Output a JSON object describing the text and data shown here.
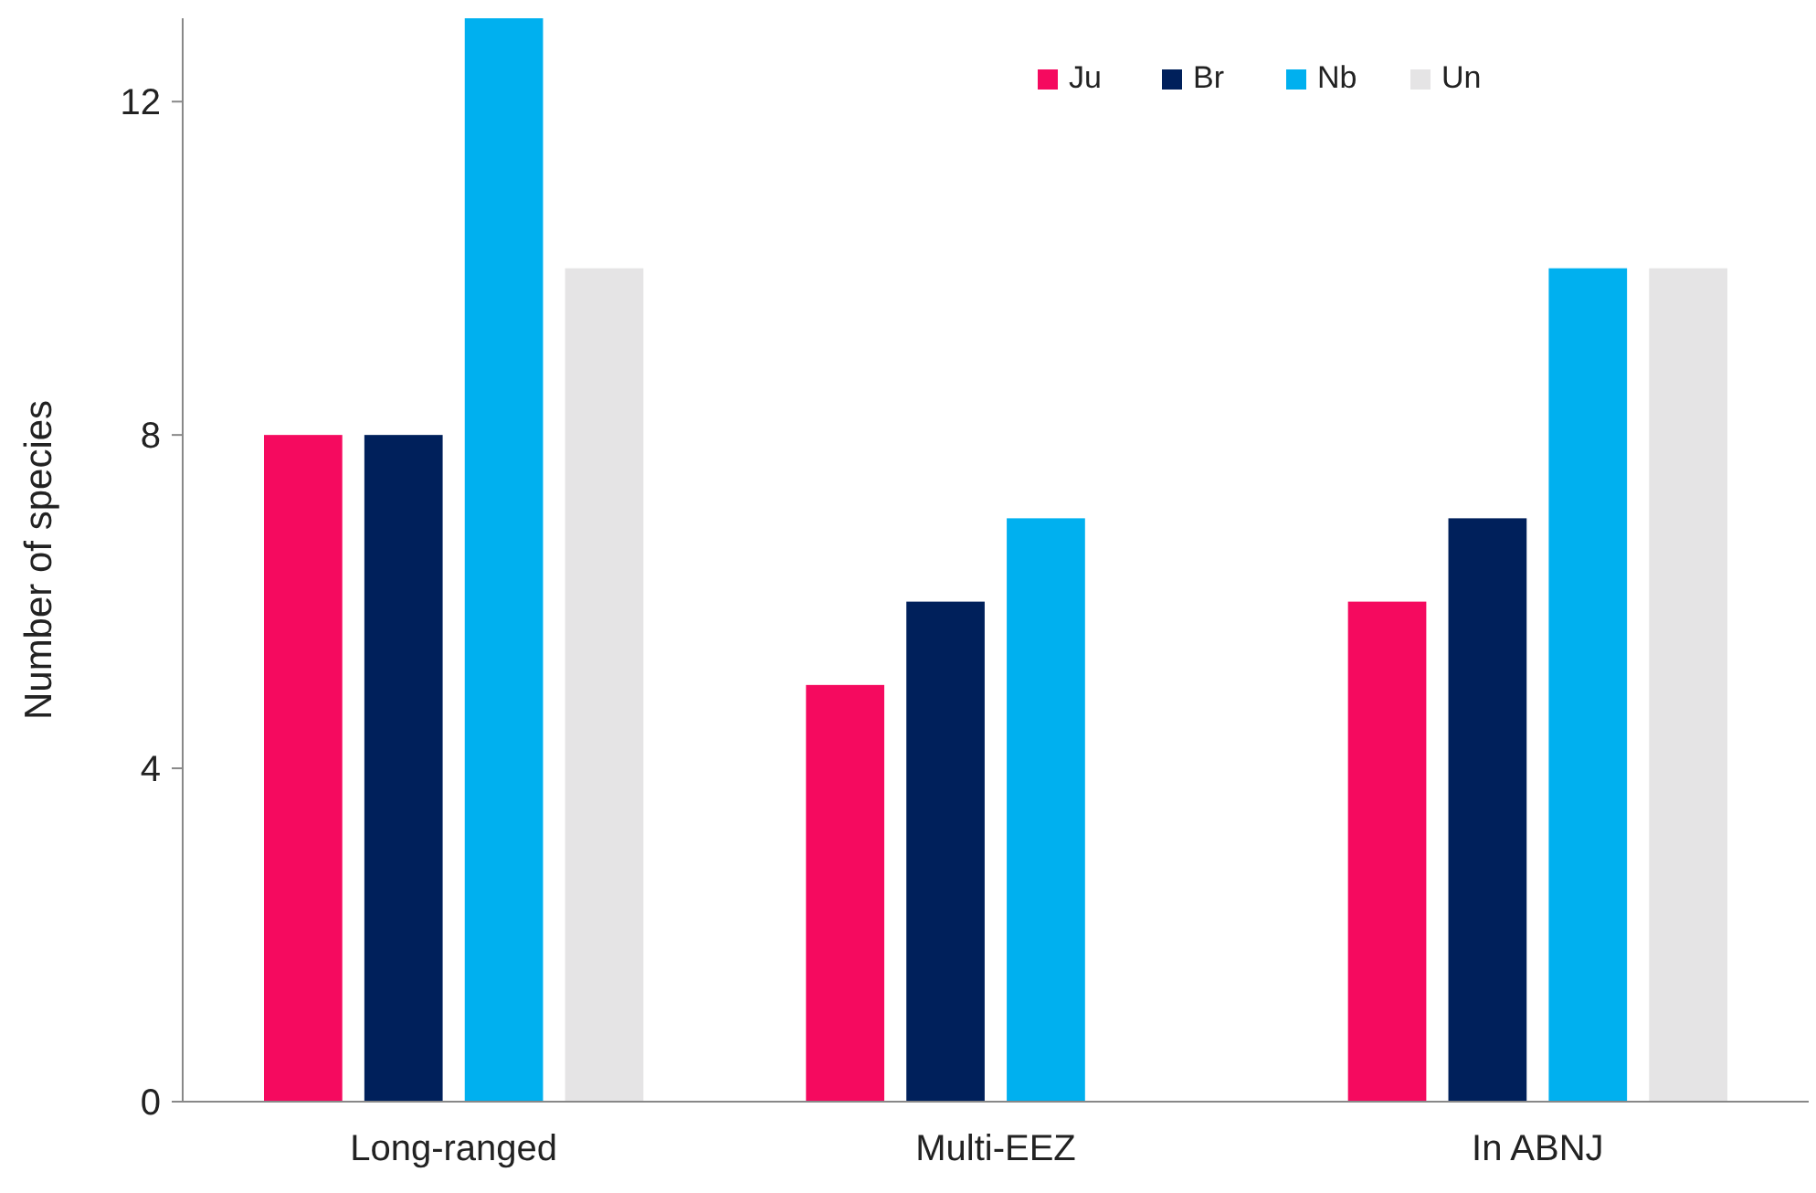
{
  "chart_data": {
    "type": "bar",
    "ylabel": "Number of species",
    "categories": [
      "Long-ranged",
      "Multi-EEZ",
      "In ABNJ"
    ],
    "series": [
      {
        "name": "Ju",
        "color": "#f50a5f",
        "values": [
          8,
          5,
          6
        ]
      },
      {
        "name": "Br",
        "color": "#00205b",
        "values": [
          8,
          6,
          7
        ]
      },
      {
        "name": "Nb",
        "color": "#00b0ef",
        "values": [
          13,
          7,
          10
        ]
      },
      {
        "name": "Un",
        "color": "#e5e4e5",
        "values": [
          10,
          null,
          10
        ]
      }
    ],
    "ylim": [
      0,
      13
    ],
    "yticks": [
      0,
      4,
      8,
      12
    ],
    "grid": false,
    "legend": "top right"
  }
}
